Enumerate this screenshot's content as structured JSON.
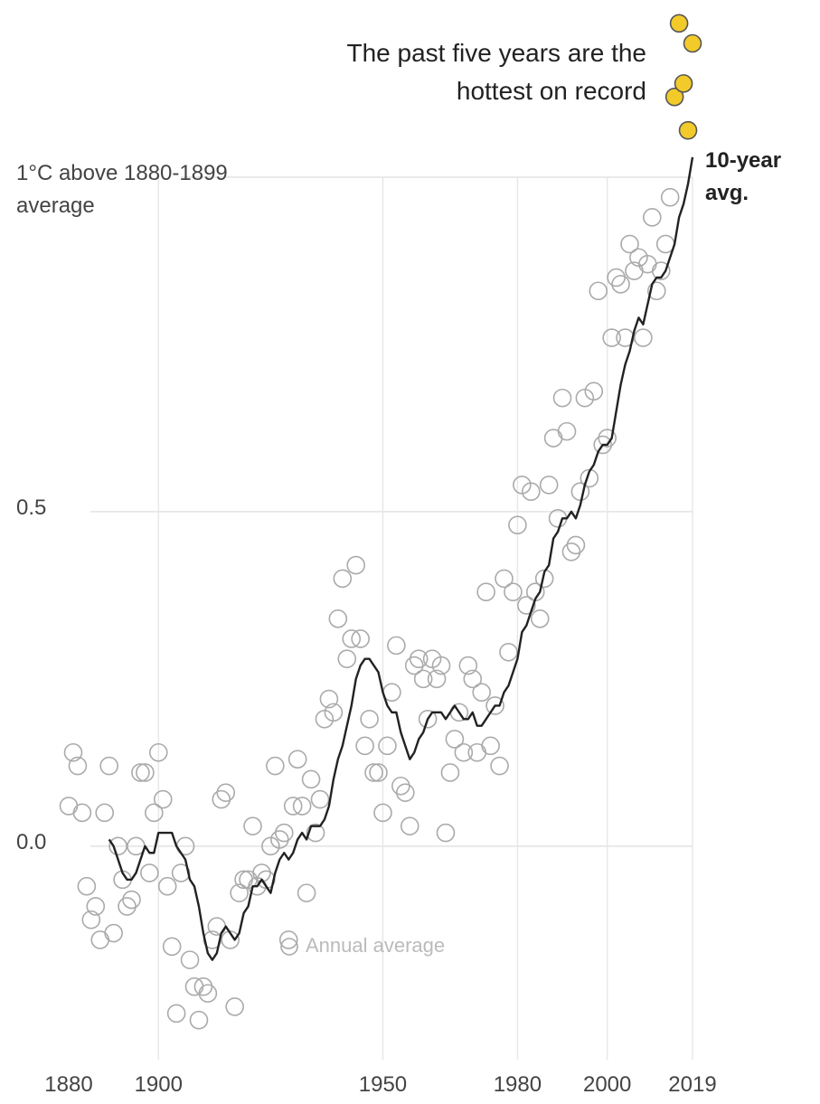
{
  "chart_data": {
    "type": "scatter",
    "annotation": "The past five years are the hottest on record",
    "xlim": [
      1880,
      2019
    ],
    "xticks": [
      1880,
      1900,
      1950,
      1980,
      2000,
      2019
    ],
    "ylim": [
      -0.33,
      1.26
    ],
    "yticks": [
      {
        "value": 0,
        "label": "0.0"
      },
      0.5,
      {
        "value": 1,
        "label": "1°C above 1880-1899 average"
      }
    ],
    "grid": true,
    "series": [
      {
        "name": "Annual average",
        "color": "#aaaaaa",
        "marker": "open",
        "x": [
          1880,
          1881,
          1882,
          1883,
          1884,
          1885,
          1886,
          1887,
          1888,
          1889,
          1890,
          1891,
          1892,
          1893,
          1894,
          1895,
          1896,
          1897,
          1898,
          1899,
          1900,
          1901,
          1902,
          1903,
          1904,
          1905,
          1906,
          1907,
          1908,
          1909,
          1910,
          1911,
          1912,
          1913,
          1914,
          1915,
          1916,
          1917,
          1918,
          1919,
          1920,
          1921,
          1922,
          1923,
          1924,
          1925,
          1926,
          1927,
          1928,
          1929,
          1930,
          1931,
          1932,
          1933,
          1934,
          1935,
          1936,
          1937,
          1938,
          1939,
          1940,
          1941,
          1942,
          1943,
          1944,
          1945,
          1946,
          1947,
          1948,
          1949,
          1950,
          1951,
          1952,
          1953,
          1954,
          1955,
          1956,
          1957,
          1958,
          1959,
          1960,
          1961,
          1962,
          1963,
          1964,
          1965,
          1966,
          1967,
          1968,
          1969,
          1970,
          1971,
          1972,
          1973,
          1974,
          1975,
          1976,
          1977,
          1978,
          1979,
          1980,
          1981,
          1982,
          1983,
          1984,
          1985,
          1986,
          1987,
          1988,
          1989,
          1990,
          1991,
          1992,
          1993,
          1994,
          1995,
          1996,
          1997,
          1998,
          1999,
          2000,
          2001,
          2002,
          2003,
          2004,
          2005,
          2006,
          2007,
          2008,
          2009,
          2010,
          2011,
          2012,
          2013,
          2014
        ],
        "values": [
          0.06,
          0.14,
          0.12,
          0.05,
          -0.06,
          -0.11,
          -0.09,
          -0.14,
          0.05,
          0.12,
          -0.13,
          0.0,
          -0.05,
          -0.09,
          -0.08,
          0.0,
          0.11,
          0.11,
          -0.04,
          0.05,
          0.14,
          0.07,
          -0.06,
          -0.15,
          -0.25,
          -0.04,
          0.0,
          -0.17,
          -0.21,
          -0.26,
          -0.21,
          -0.22,
          -0.14,
          -0.12,
          0.07,
          0.08,
          -0.14,
          -0.24,
          -0.07,
          -0.05,
          -0.05,
          0.03,
          -0.06,
          -0.04,
          -0.05,
          0.0,
          0.12,
          0.01,
          0.02,
          -0.14,
          0.06,
          0.13,
          0.06,
          -0.07,
          0.1,
          0.02,
          0.07,
          0.19,
          0.22,
          0.2,
          0.34,
          0.4,
          0.28,
          0.31,
          0.42,
          0.31,
          0.15,
          0.19,
          0.11,
          0.11,
          0.05,
          0.15,
          0.23,
          0.3,
          0.09,
          0.08,
          0.03,
          0.27,
          0.28,
          0.25,
          0.19,
          0.28,
          0.25,
          0.27,
          0.02,
          0.11,
          0.16,
          0.2,
          0.14,
          0.27,
          0.25,
          0.14,
          0.23,
          0.38,
          0.15,
          0.21,
          0.12,
          0.4,
          0.29,
          0.38,
          0.48,
          0.54,
          0.36,
          0.53,
          0.38,
          0.34,
          0.4,
          0.54,
          0.61,
          0.49,
          0.67,
          0.62,
          0.44,
          0.45,
          0.53,
          0.67,
          0.55,
          0.68,
          0.83,
          0.6,
          0.61,
          0.76,
          0.85,
          0.84,
          0.76,
          0.9,
          0.86,
          0.88,
          0.76,
          0.87,
          0.94,
          0.83,
          0.86,
          0.9,
          0.97
        ]
      },
      {
        "color": "#f2cb2b",
        "marker": "filled",
        "x": [
          2015,
          2016,
          2017,
          2018,
          2019
        ],
        "values": [
          1.12,
          1.23,
          1.14,
          1.07,
          1.2
        ]
      },
      {
        "name": "10-year avg.",
        "color": "#222222",
        "type": "line",
        "x": [
          1889,
          1890,
          1891,
          1892,
          1893,
          1894,
          1895,
          1896,
          1897,
          1898,
          1899,
          1900,
          1901,
          1902,
          1903,
          1904,
          1905,
          1906,
          1907,
          1908,
          1909,
          1910,
          1911,
          1912,
          1913,
          1914,
          1915,
          1916,
          1917,
          1918,
          1919,
          1920,
          1921,
          1922,
          1923,
          1924,
          1925,
          1926,
          1927,
          1928,
          1929,
          1930,
          1931,
          1932,
          1933,
          1934,
          1935,
          1936,
          1937,
          1938,
          1939,
          1940,
          1941,
          1942,
          1943,
          1944,
          1945,
          1946,
          1947,
          1948,
          1949,
          1950,
          1951,
          1952,
          1953,
          1954,
          1955,
          1956,
          1957,
          1958,
          1959,
          1960,
          1961,
          1962,
          1963,
          1964,
          1965,
          1966,
          1967,
          1968,
          1969,
          1970,
          1971,
          1972,
          1973,
          1974,
          1975,
          1976,
          1977,
          1978,
          1979,
          1980,
          1981,
          1982,
          1983,
          1984,
          1985,
          1986,
          1987,
          1988,
          1989,
          1990,
          1991,
          1992,
          1993,
          1994,
          1995,
          1996,
          1997,
          1998,
          1999,
          2000,
          2001,
          2002,
          2003,
          2004,
          2005,
          2006,
          2007,
          2008,
          2009,
          2010,
          2011,
          2012,
          2013,
          2014,
          2015,
          2016,
          2017,
          2018,
          2019
        ],
        "values": [
          0.01,
          0.0,
          -0.02,
          -0.04,
          -0.05,
          -0.05,
          -0.04,
          -0.02,
          0.0,
          -0.01,
          -0.01,
          0.02,
          0.02,
          0.02,
          0.02,
          0.0,
          -0.01,
          -0.02,
          -0.05,
          -0.06,
          -0.09,
          -0.13,
          -0.16,
          -0.17,
          -0.16,
          -0.13,
          -0.12,
          -0.13,
          -0.14,
          -0.13,
          -0.1,
          -0.09,
          -0.06,
          -0.06,
          -0.05,
          -0.06,
          -0.07,
          -0.04,
          -0.02,
          -0.01,
          -0.02,
          -0.01,
          0.01,
          0.02,
          0.01,
          0.03,
          0.03,
          0.03,
          0.04,
          0.06,
          0.1,
          0.13,
          0.15,
          0.18,
          0.21,
          0.25,
          0.27,
          0.28,
          0.28,
          0.27,
          0.26,
          0.23,
          0.21,
          0.2,
          0.2,
          0.17,
          0.15,
          0.13,
          0.14,
          0.16,
          0.17,
          0.19,
          0.2,
          0.2,
          0.2,
          0.19,
          0.2,
          0.21,
          0.2,
          0.19,
          0.19,
          0.2,
          0.18,
          0.18,
          0.19,
          0.2,
          0.21,
          0.21,
          0.23,
          0.24,
          0.26,
          0.28,
          0.32,
          0.33,
          0.35,
          0.37,
          0.38,
          0.41,
          0.42,
          0.46,
          0.47,
          0.49,
          0.49,
          0.5,
          0.49,
          0.51,
          0.54,
          0.56,
          0.57,
          0.59,
          0.6,
          0.6,
          0.61,
          0.65,
          0.69,
          0.72,
          0.74,
          0.77,
          0.79,
          0.78,
          0.81,
          0.84,
          0.85,
          0.85,
          0.86,
          0.88,
          0.9,
          0.94,
          0.96,
          0.99,
          1.03
        ]
      }
    ]
  }
}
